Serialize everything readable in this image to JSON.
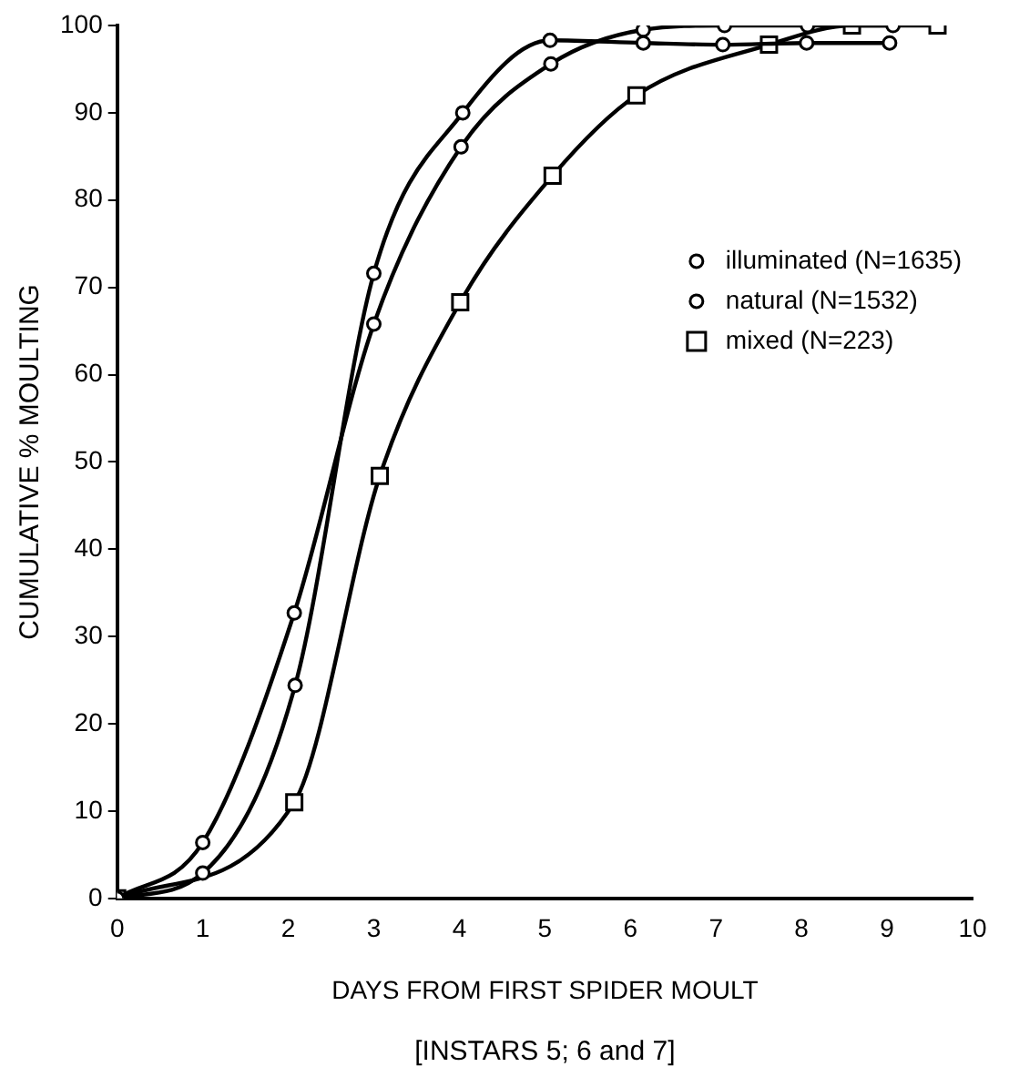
{
  "chart_data": {
    "type": "line",
    "xlabel": "DAYS FROM FIRST SPIDER MOULT",
    "ylabel": "CUMULATIVE % MOULTING",
    "annotations": [
      "[INSTARS 5; 6 and 7]"
    ],
    "xlim": [
      0,
      10
    ],
    "xticks": [
      0,
      1,
      2,
      3,
      4,
      5,
      6,
      7,
      8,
      9,
      10
    ],
    "ylim": [
      0,
      100
    ],
    "yticks": [
      0,
      10,
      20,
      30,
      40,
      50,
      60,
      70,
      80,
      90,
      100
    ],
    "grid": false,
    "legend": "right",
    "series": [
      {
        "name": "illuminated (N=1635)",
        "color": "#000000",
        "marker": "circle",
        "x": [
          0,
          1,
          2.08,
          3,
          4.04,
          5.06,
          6.15,
          7.08,
          8.06,
          9.03
        ],
        "values": [
          0,
          2.9,
          24.4,
          71.6,
          90,
          98.3,
          98,
          97.8,
          98,
          98
        ]
      },
      {
        "name": "natural (N=1532)",
        "color": "#000000",
        "marker": "circle",
        "x": [
          0,
          1,
          2.07,
          3,
          4.02,
          5.07,
          6.15,
          7.1,
          8.07,
          9.07
        ],
        "values": [
          0,
          6.4,
          32.7,
          65.8,
          86.1,
          95.6,
          99.5,
          100,
          100,
          100
        ]
      },
      {
        "name": "mixed (N=223)",
        "color": "#000000",
        "marker": "square",
        "x": [
          0,
          2.07,
          3.07,
          4.01,
          5.09,
          6.07,
          7.62,
          8.59,
          9.59
        ],
        "values": [
          0,
          11,
          48.4,
          68.3,
          82.8,
          92,
          97.8,
          100,
          100
        ]
      }
    ]
  }
}
